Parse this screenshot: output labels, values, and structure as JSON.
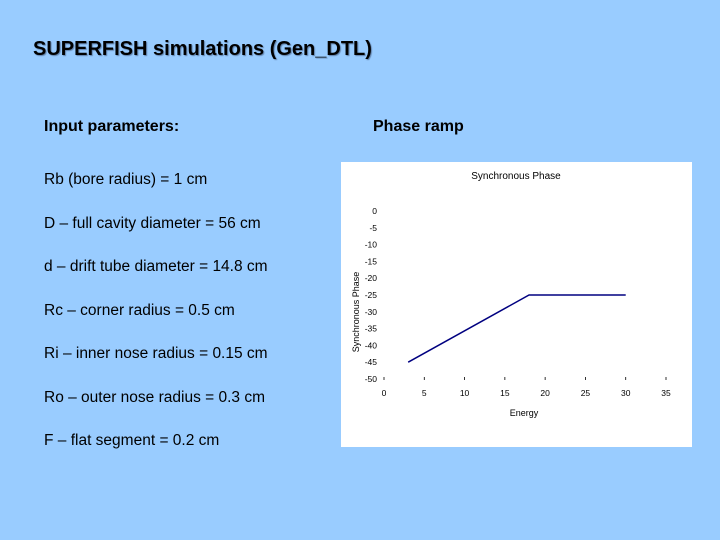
{
  "slide": {
    "title": "SUPERFISH simulations (Gen_DTL)",
    "left_heading": "Input parameters:",
    "right_heading": "Phase ramp",
    "params": [
      "Rb (bore radius) = 1 cm",
      "D – full cavity diameter = 56 cm",
      "d – drift tube diameter = 14.8 cm",
      "Rc – corner radius = 0.5 cm",
      "Ri – inner nose radius = 0.15 cm",
      "Ro – outer nose radius = 0.3 cm",
      "F – flat segment = 0.2 cm"
    ]
  },
  "colors": {
    "background": "#99CCFF",
    "series": "#000080"
  },
  "chart_data": {
    "type": "line",
    "title": "Synchronous Phase",
    "xlabel": "Energy",
    "ylabel": "Synchronous Phase",
    "xlim": [
      0,
      35
    ],
    "ylim": [
      -50,
      0
    ],
    "xticks": [
      0,
      5,
      10,
      15,
      20,
      25,
      30,
      35
    ],
    "yticks": [
      0,
      -5,
      -10,
      -15,
      -20,
      -25,
      -30,
      -35,
      -40,
      -45,
      -50
    ],
    "grid": false,
    "series": [
      {
        "x": [
          3,
          18,
          30
        ],
        "y": [
          -45,
          -25,
          -25
        ]
      }
    ]
  }
}
